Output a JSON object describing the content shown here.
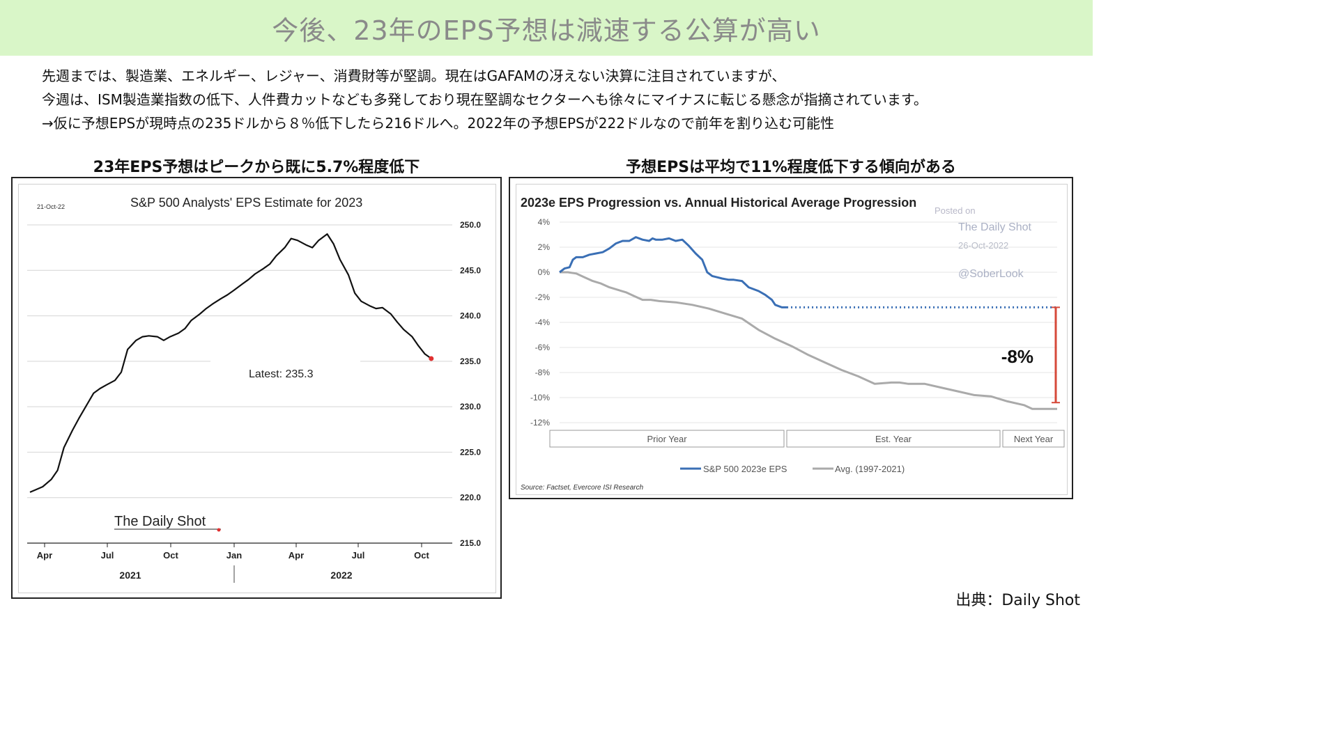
{
  "page": {
    "title": "今後、23年のEPS予想は減速する公算が高い",
    "description": [
      "先週までは、製造業、エネルギー、レジャー、消費財等が堅調。現在はGAFAMの冴えない決算に注目されていますが、",
      "今週は、ISM製造業指数の低下、人件費カットなども多発しており現在堅調なセクターへも徐々にマイナスに転じる懸念が指摘されています。",
      "→仮に予想EPSが現時点の235ドルから８％低下したら216ドルへ。2022年の予想EPSが222ドルなので前年を割り込む可能性"
    ],
    "left_heading": "23年EPS予想はピークから既に5.7%程度低下",
    "right_heading": "予想EPSは平均で11%程度低下する傾向がある",
    "credit": "出典：Daily Shot"
  },
  "chart_data": [
    {
      "type": "line",
      "title": "S&P 500 Analysts' EPS Estimate for 2023",
      "date_label": "21-Oct-22",
      "annotation": "Latest:  235.3",
      "logo": "The Daily Shot",
      "x_tick_labels": [
        "Apr",
        "Jul",
        "Oct",
        "Jan",
        "Apr",
        "Jul",
        "Oct"
      ],
      "year_labels": [
        "2021",
        "2022"
      ],
      "y_tick_labels": [
        "250.0",
        "245.0",
        "240.0",
        "235.0",
        "230.0",
        "225.0",
        "220.0",
        "215.0"
      ],
      "ylim": [
        215,
        250
      ],
      "xlim": [
        0,
        19.3
      ],
      "grid": true,
      "line_color": "#111111",
      "end_marker_color": "#e03030",
      "series": [
        {
          "x": [
            0,
            0.3,
            0.6,
            1.0,
            1.3,
            1.6,
            2.0,
            2.3,
            2.6,
            3.0,
            3.3,
            3.6,
            4.0,
            4.3,
            4.6,
            5.0,
            5.3,
            5.6,
            6.0,
            6.3,
            6.6,
            7.0,
            7.3,
            7.6,
            8.0,
            8.3,
            8.6,
            9.0,
            9.3,
            9.6,
            10.0,
            10.3,
            10.6,
            11.0,
            11.3,
            11.6,
            12.0,
            12.3,
            12.6,
            13.0,
            13.3,
            13.6,
            14.0,
            14.3,
            14.6,
            15.0,
            15.3,
            15.6,
            16.0,
            16.3,
            16.6,
            17.0,
            17.3,
            17.6,
            18.0,
            18.3,
            18.6,
            18.9
          ],
          "y": [
            220.6,
            220.9,
            221.2,
            222.0,
            223.0,
            225.5,
            227.4,
            228.7,
            229.9,
            231.5,
            232.0,
            232.4,
            232.9,
            233.8,
            236.3,
            237.3,
            237.7,
            237.8,
            237.7,
            237.3,
            237.7,
            238.1,
            238.6,
            239.5,
            240.2,
            240.8,
            241.3,
            241.9,
            242.3,
            242.8,
            243.5,
            244.0,
            244.6,
            245.2,
            245.7,
            246.6,
            247.5,
            248.5,
            248.3,
            247.8,
            247.5,
            248.3,
            249.0,
            247.9,
            246.2,
            244.5,
            242.5,
            241.6,
            241.1,
            240.8,
            240.9,
            240.2,
            239.3,
            238.5,
            237.7,
            236.7,
            235.8,
            235.3
          ]
        }
      ]
    },
    {
      "type": "line",
      "title": "2023e EPS Progression vs. Annual Historical Average Progression",
      "watermark": [
        "Posted on",
        "The Daily Shot",
        "26-Oct-2022",
        "@SoberLook"
      ],
      "y_tick_labels": [
        "4%",
        "2%",
        "0%",
        "-2%",
        "-4%",
        "-6%",
        "-8%",
        "-10%",
        "-12%"
      ],
      "ylim": [
        -12,
        4
      ],
      "xlim": [
        0,
        3
      ],
      "x_period_labels": [
        "Prior Year",
        "Est. Year",
        "Next Year"
      ],
      "annotation": "-8%",
      "source": "Source: Factset, Evercore ISI Research",
      "grid": true,
      "series": [
        {
          "name": "S&P 500 2023e EPS",
          "color": "#3a6fb5",
          "x": [
            0,
            0.03,
            0.06,
            0.08,
            0.1,
            0.14,
            0.18,
            0.22,
            0.26,
            0.3,
            0.34,
            0.38,
            0.42,
            0.46,
            0.5,
            0.54,
            0.56,
            0.58,
            0.62,
            0.66,
            0.7,
            0.74,
            0.78,
            0.82,
            0.86,
            0.89,
            0.92,
            0.95,
            0.98,
            1.02,
            1.05,
            1.1,
            1.14,
            1.2,
            1.24,
            1.28,
            1.3,
            1.34,
            1.37
          ],
          "y": [
            0,
            0.3,
            0.4,
            1.0,
            1.2,
            1.2,
            1.4,
            1.5,
            1.6,
            1.9,
            2.3,
            2.5,
            2.5,
            2.8,
            2.6,
            2.5,
            2.7,
            2.6,
            2.6,
            2.7,
            2.5,
            2.6,
            2.1,
            1.5,
            1.0,
            0.0,
            -0.3,
            -0.4,
            -0.5,
            -0.6,
            -0.6,
            -0.7,
            -1.2,
            -1.5,
            -1.8,
            -2.2,
            -2.6,
            -2.8,
            -2.8
          ]
        },
        {
          "name": "Avg. (1997-2021)",
          "color": "#aaaaaa",
          "x": [
            0,
            0.05,
            0.1,
            0.15,
            0.2,
            0.25,
            0.3,
            0.35,
            0.4,
            0.45,
            0.5,
            0.55,
            0.6,
            0.7,
            0.8,
            0.9,
            1.0,
            1.1,
            1.2,
            1.3,
            1.4,
            1.5,
            1.6,
            1.7,
            1.8,
            1.9,
            2.0,
            2.05,
            2.1,
            2.2,
            2.3,
            2.4,
            2.5,
            2.6,
            2.7,
            2.8,
            2.85,
            2.9,
            2.95,
            3.0
          ],
          "y": [
            0,
            0.0,
            -0.1,
            -0.4,
            -0.7,
            -0.9,
            -1.2,
            -1.4,
            -1.6,
            -1.9,
            -2.2,
            -2.2,
            -2.3,
            -2.4,
            -2.6,
            -2.9,
            -3.3,
            -3.7,
            -4.6,
            -5.3,
            -5.9,
            -6.6,
            -7.2,
            -7.8,
            -8.3,
            -8.9,
            -8.8,
            -8.8,
            -8.9,
            -8.9,
            -9.2,
            -9.5,
            -9.8,
            -9.9,
            -10.3,
            -10.6,
            -10.9,
            -10.9,
            -10.9,
            -10.9
          ]
        }
      ],
      "projection": {
        "x": [
          1.37,
          3.0
        ],
        "y": [
          -2.8,
          -2.8
        ],
        "color": "#3a6fb5",
        "style": "dotted"
      },
      "bracket": {
        "y": [
          -2.8,
          -10.4
        ],
        "color": "#d64a3a"
      }
    }
  ]
}
